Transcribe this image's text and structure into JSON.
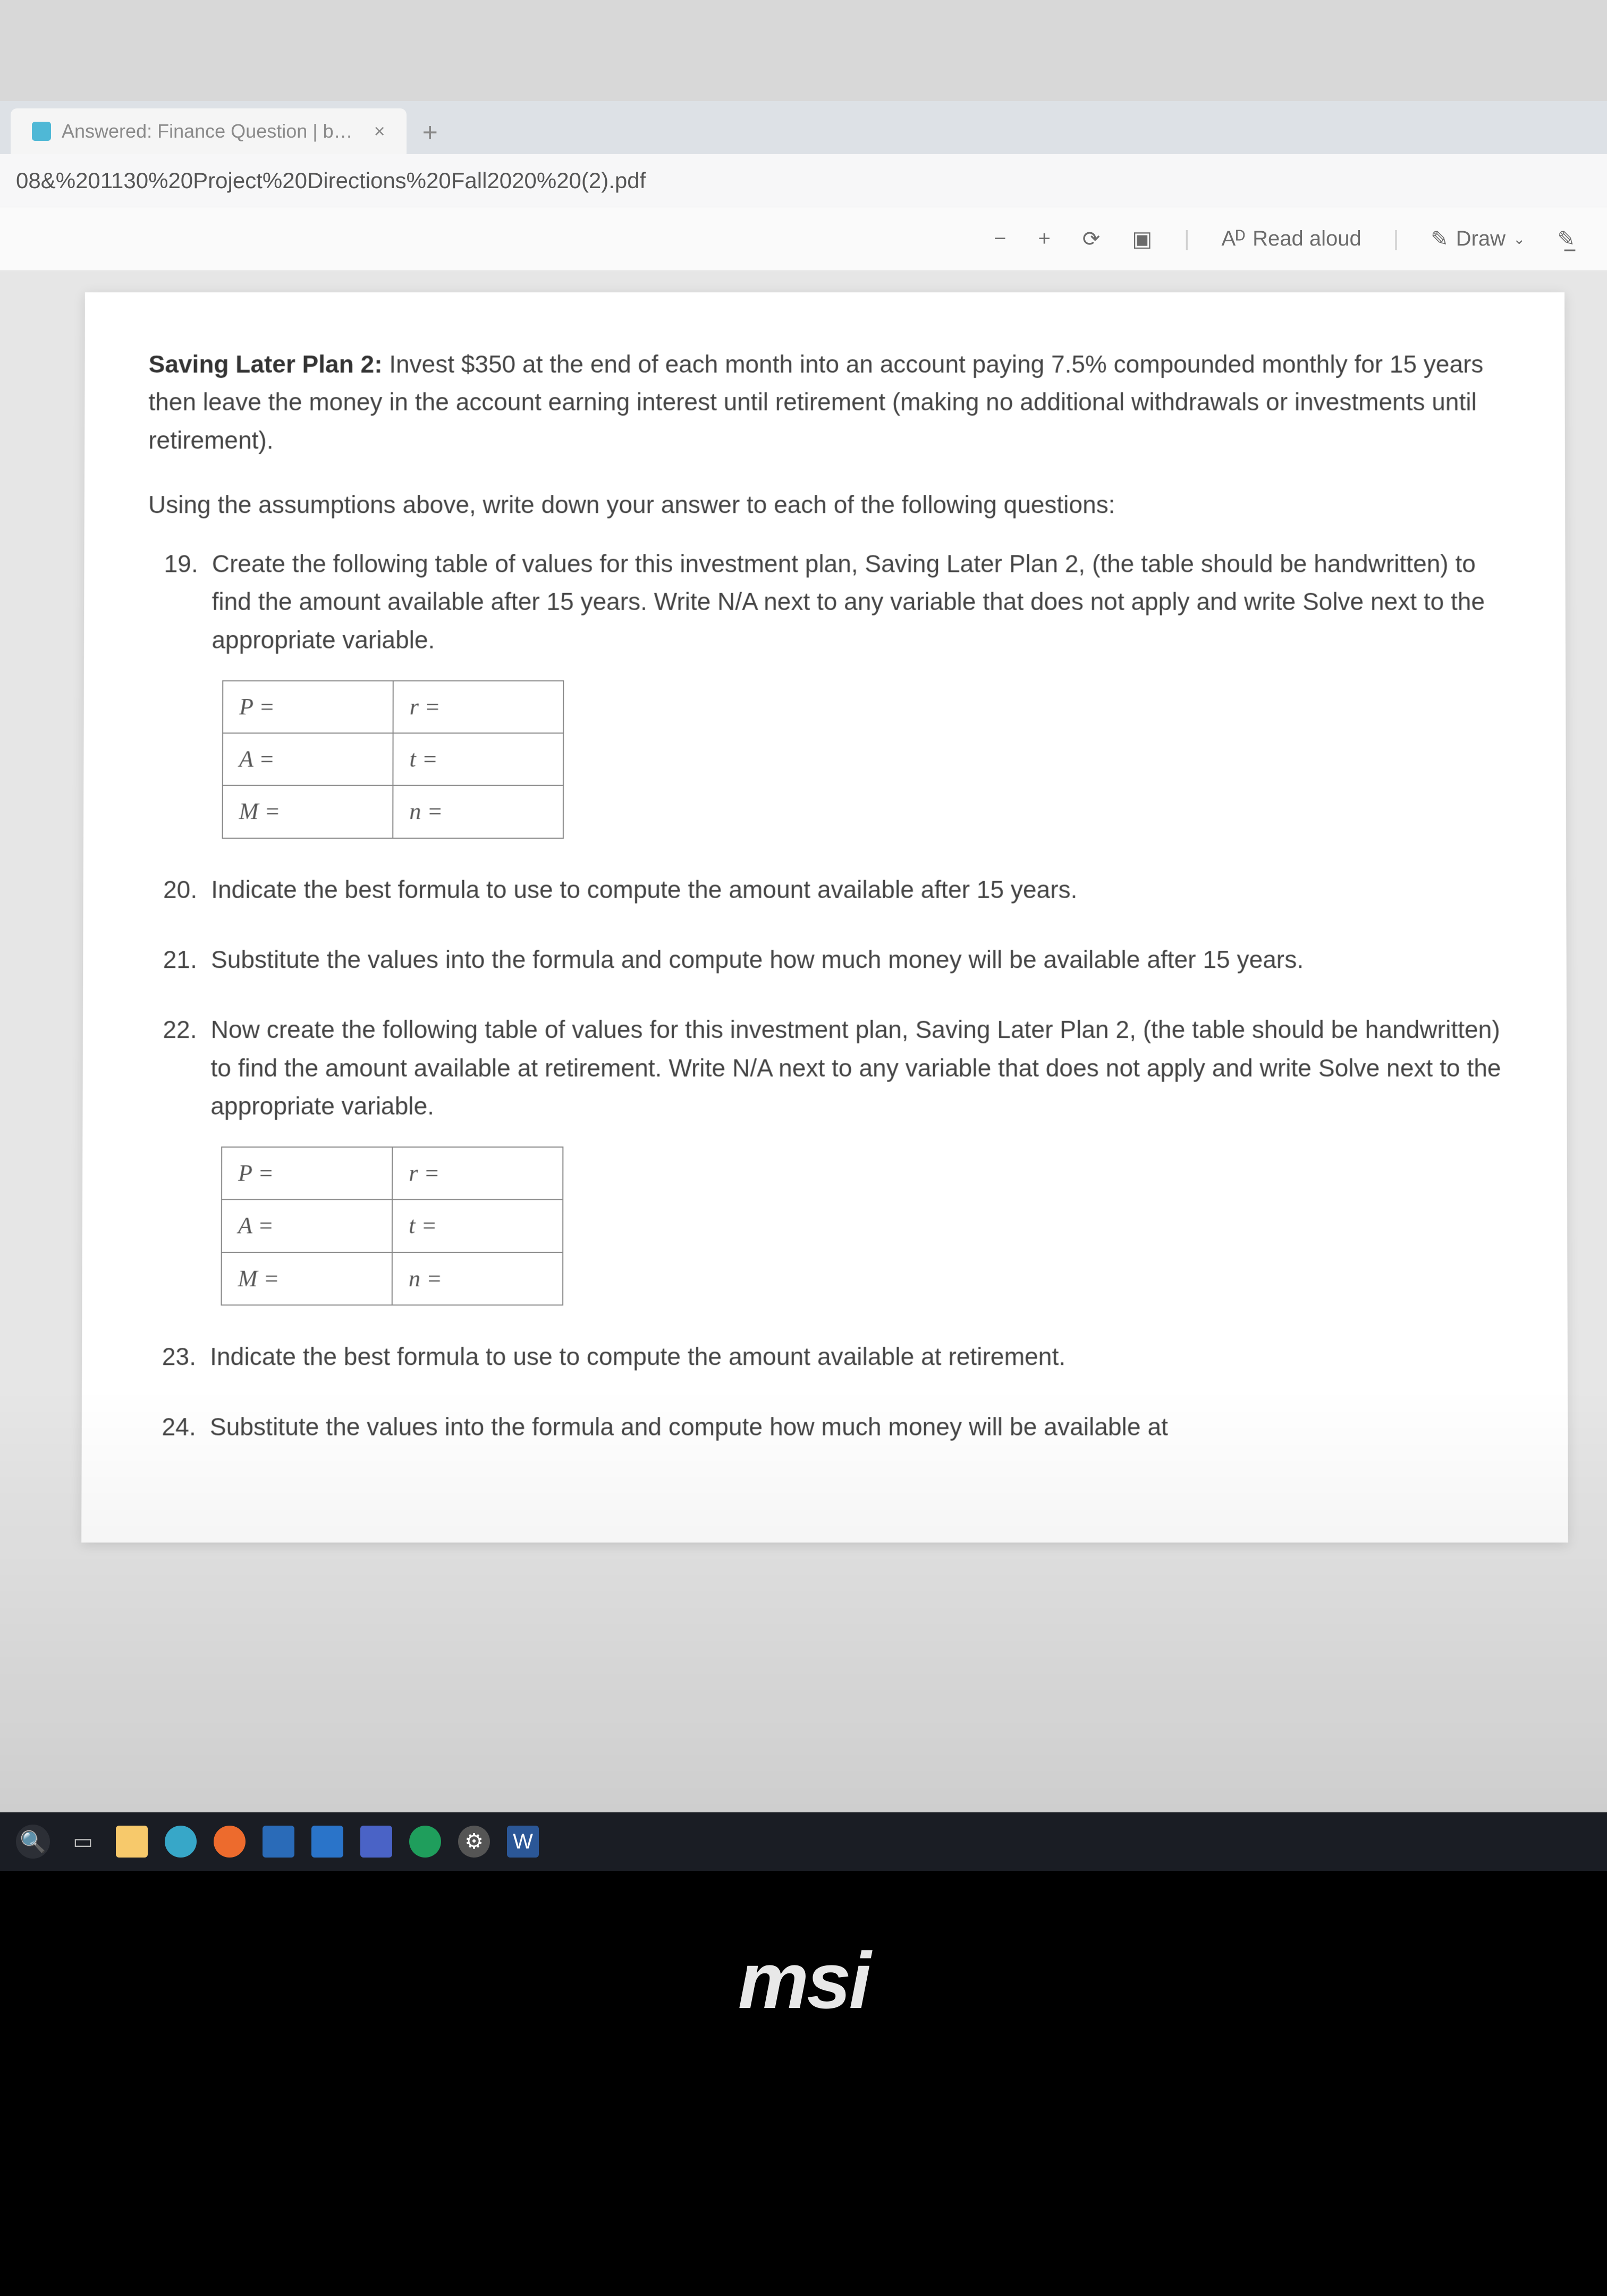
{
  "browser": {
    "tab_title": "Answered: Finance Question | b…",
    "new_tab_label": "+",
    "tab_close_glyph": "×",
    "address": "08&%201130%20Project%20Directions%20Fall2020%20(2).pdf"
  },
  "toolbar": {
    "zoom_out": "−",
    "zoom_in": "+",
    "rotate_glyph": "⟳",
    "fit_glyph": "▣",
    "read_aloud_label": "Read aloud",
    "read_aloud_prefix": "Aᴰ",
    "draw_label": "Draw",
    "draw_glyph": "✎",
    "highlight_glyph": "✎̲"
  },
  "doc": {
    "heading": "Saving Later Plan 2:",
    "intro_rest": "  Invest $350 at the end of each month into an account paying 7.5% compounded monthly for 15 years then leave the money in the account earning interest until retirement (making no additional withdrawals or investments until retirement).",
    "instr": "Using the assumptions above, write down your answer to each of the following questions:",
    "q19": {
      "num": "19.",
      "text": "Create the following table of values for this investment plan, Saving Later Plan 2,  (the table should be handwritten) to find the amount available after 15 years. Write N/A next to any variable that does not apply and write Solve next to the appropriate variable.",
      "table": {
        "r1c1": "P =",
        "r1c2": "r =",
        "r2c1": "A =",
        "r2c2": "t =",
        "r3c1": "M =",
        "r3c2": "n ="
      }
    },
    "q20": {
      "num": "20.",
      "text": "Indicate the best formula to use to compute the amount available after 15 years."
    },
    "q21": {
      "num": "21.",
      "text": "Substitute the values into the formula and compute how much money will be available after 15 years."
    },
    "q22": {
      "num": "22.",
      "text": "Now create the following table of values for this investment plan, Saving Later Plan 2, (the table should be handwritten) to find the amount available at retirement. Write N/A next to any variable that does not apply and write Solve next to the appropriate variable.",
      "table": {
        "r1c1": "P =",
        "r1c2": "r =",
        "r2c1": "A =",
        "r2c2": "t =",
        "r3c1": "M =",
        "r3c2": "n ="
      }
    },
    "q23": {
      "num": "23.",
      "text": "Indicate the best formula to use to compute the amount available at retirement."
    },
    "q24": {
      "num": "24.",
      "text": "Substitute the values into the formula and compute how much money will be available at"
    }
  },
  "laptop": {
    "brand": "msi"
  },
  "colors": {
    "page_bg": "#ffffff",
    "viewport_bg": "#e6e6e6",
    "text": "#444444",
    "heading": "#333333",
    "table_border": "#888888",
    "taskbar_bg": "#1a1d24"
  }
}
